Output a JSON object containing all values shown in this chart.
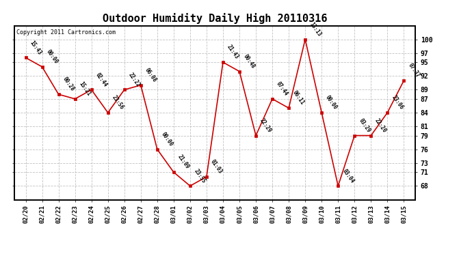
{
  "title": "Outdoor Humidity Daily High 20110316",
  "copyright": "Copyright 2011 Cartronics.com",
  "x_labels": [
    "02/20",
    "02/21",
    "02/22",
    "02/23",
    "02/24",
    "02/25",
    "02/26",
    "02/27",
    "02/28",
    "03/01",
    "03/02",
    "03/03",
    "03/04",
    "03/05",
    "03/06",
    "03/07",
    "03/08",
    "03/09",
    "03/10",
    "03/11",
    "03/12",
    "03/13",
    "03/14",
    "03/15"
  ],
  "y_values": [
    96,
    94,
    88,
    87,
    89,
    84,
    89,
    90,
    76,
    71,
    68,
    70,
    95,
    93,
    79,
    87,
    85,
    100,
    84,
    68,
    79,
    79,
    84,
    91
  ],
  "point_labels": [
    "15:43",
    "00:00",
    "00:28",
    "15:21",
    "02:44",
    "23:56",
    "22:22",
    "06:08",
    "00:00",
    "21:09",
    "23:55",
    "01:03",
    "21:43",
    "00:48",
    "22:29",
    "07:44",
    "06:11",
    "13:13",
    "00:00",
    "03:04",
    "03:29",
    "22:20",
    "23:06",
    "07:37"
  ],
  "line_color": "#cc0000",
  "marker_color": "#cc0000",
  "bg_color": "#ffffff",
  "grid_color": "#bbbbbb",
  "title_fontsize": 11,
  "ylim_min": 65,
  "ylim_max": 103,
  "y_right_ticks": [
    68,
    71,
    73,
    76,
    79,
    81,
    84,
    87,
    89,
    92,
    95,
    97,
    100
  ]
}
